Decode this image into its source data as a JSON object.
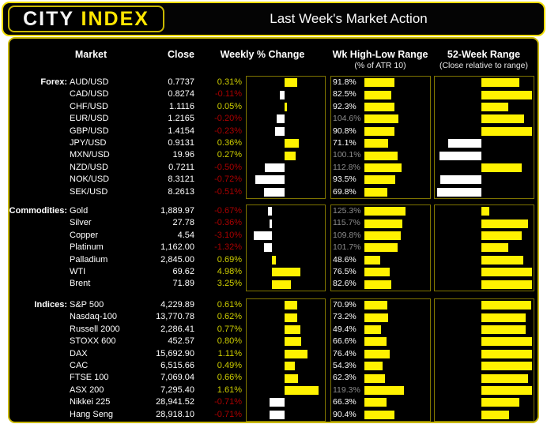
{
  "header": {
    "logo_city": "CITY ",
    "logo_index": "INDEX",
    "title": "Last Week's Market Action"
  },
  "columns": {
    "market": "Market",
    "close": "Close",
    "weekly": "Weekly % Change",
    "hl_range": "Wk High-Low Range",
    "hl_range_sub": "(% of ATR 10)",
    "range52": "52-Week Range",
    "range52_sub": "(Close relative to range)"
  },
  "colors": {
    "background": "#000000",
    "accent_yellow": "#ffe600",
    "bar_positive": "#fff200",
    "bar_negative": "#ffffff",
    "text_positive": "#cfcf00",
    "text_negative": "#ab0000",
    "text_normal": "#ffffff",
    "text_over100": "#8c8c8c",
    "frame_border": "#7f7500",
    "outer_border": "#c9b800"
  },
  "chart_data": {
    "type": "table",
    "title": "Last Week's Market Action",
    "legend_note": "Weekly % bars: yellow = up / white = down; Wk High-Low bars as % of ATR 10; 52-week bars show close relative to range midpoint (yellow right = upper half, white left = lower half)",
    "sections": [
      {
        "label": "Forex:",
        "rows": [
          {
            "market": "AUD/USD",
            "close": "0.7737",
            "weekly_pct": 0.31,
            "weekly_label": "0.31%",
            "atr_pct": 91.8,
            "atr_label": "91.8%",
            "range52": 0.73
          },
          {
            "market": "CAD/USD",
            "close": "0.8274",
            "weekly_pct": -0.11,
            "weekly_label": "-0.11%",
            "atr_pct": 82.5,
            "atr_label": "82.5%",
            "range52": 0.97
          },
          {
            "market": "CHF/USD",
            "close": "1.1116",
            "weekly_pct": 0.05,
            "weekly_label": "0.05%",
            "atr_pct": 92.3,
            "atr_label": "92.3%",
            "range52": 0.52
          },
          {
            "market": "EUR/USD",
            "close": "1.2165",
            "weekly_pct": -0.2,
            "weekly_label": "-0.20%",
            "atr_pct": 104.6,
            "atr_label": "104.6%",
            "range52": 0.82
          },
          {
            "market": "GBP/USD",
            "close": "1.4154",
            "weekly_pct": -0.23,
            "weekly_label": "-0.23%",
            "atr_pct": 90.8,
            "atr_label": "90.8%",
            "range52": 0.97
          },
          {
            "market": "JPY/USD",
            "close": "0.9131",
            "weekly_pct": 0.36,
            "weekly_label": "0.36%",
            "atr_pct": 71.1,
            "atr_label": "71.1%",
            "range52": -0.7
          },
          {
            "market": "MXN/USD",
            "close": "19.96",
            "weekly_pct": 0.27,
            "weekly_label": "0.27%",
            "atr_pct": 100.1,
            "atr_label": "100.1%",
            "range52": -0.88
          },
          {
            "market": "NZD/USD",
            "close": "0.7211",
            "weekly_pct": -0.5,
            "weekly_label": "-0.50%",
            "atr_pct": 112.8,
            "atr_label": "112.8%",
            "range52": 0.77
          },
          {
            "market": "NOK/USD",
            "close": "8.3121",
            "weekly_pct": -0.72,
            "weekly_label": "-0.72%",
            "atr_pct": 93.5,
            "atr_label": "93.5%",
            "range52": -0.87
          },
          {
            "market": "SEK/USD",
            "close": "8.2613",
            "weekly_pct": -0.51,
            "weekly_label": "-0.51%",
            "atr_pct": 69.8,
            "atr_label": "69.8%",
            "range52": -0.93
          }
        ]
      },
      {
        "label": "Commodities:",
        "rows": [
          {
            "market": "Gold",
            "close": "1,889.97",
            "weekly_pct": -0.67,
            "weekly_label": "-0.67%",
            "atr_pct": 125.3,
            "atr_label": "125.3%",
            "range52": 0.15
          },
          {
            "market": "Silver",
            "close": "27.78",
            "weekly_pct": -0.36,
            "weekly_label": "-0.36%",
            "atr_pct": 115.7,
            "atr_label": "115.7%",
            "range52": 0.89
          },
          {
            "market": "Copper",
            "close": "4.54",
            "weekly_pct": -3.1,
            "weekly_label": "-3.10%",
            "atr_pct": 109.8,
            "atr_label": "109.8%",
            "range52": 0.77
          },
          {
            "market": "Platinum",
            "close": "1,162.00",
            "weekly_pct": -1.32,
            "weekly_label": "-1.32%",
            "atr_pct": 101.7,
            "atr_label": "101.7%",
            "range52": 0.52
          },
          {
            "market": "Palladium",
            "close": "2,845.00",
            "weekly_pct": 0.69,
            "weekly_label": "0.69%",
            "atr_pct": 48.6,
            "atr_label": "48.6%",
            "range52": 0.81
          },
          {
            "market": "WTI",
            "close": "69.62",
            "weekly_pct": 4.98,
            "weekly_label": "4.98%",
            "atr_pct": 76.5,
            "atr_label": "76.5%",
            "range52": 0.97
          },
          {
            "market": "Brent",
            "close": "71.89",
            "weekly_pct": 3.25,
            "weekly_label": "3.25%",
            "atr_pct": 82.6,
            "atr_label": "82.6%",
            "range52": 0.97
          }
        ]
      },
      {
        "label": "Indices:",
        "rows": [
          {
            "market": "S&P 500",
            "close": "4,229.89",
            "weekly_pct": 0.61,
            "weekly_label": "0.61%",
            "atr_pct": 70.9,
            "atr_label": "70.9%",
            "range52": 0.95
          },
          {
            "market": "Nasdaq-100",
            "close": "13,770.78",
            "weekly_pct": 0.62,
            "weekly_label": "0.62%",
            "atr_pct": 73.2,
            "atr_label": "73.2%",
            "range52": 0.85
          },
          {
            "market": "Russell 2000",
            "close": "2,286.41",
            "weekly_pct": 0.77,
            "weekly_label": "0.77%",
            "atr_pct": 49.4,
            "atr_label": "49.4%",
            "range52": 0.85
          },
          {
            "market": "STOXX 600",
            "close": "452.57",
            "weekly_pct": 0.8,
            "weekly_label": "0.80%",
            "atr_pct": 66.6,
            "atr_label": "66.6%",
            "range52": 0.97
          },
          {
            "market": "DAX",
            "close": "15,692.90",
            "weekly_pct": 1.11,
            "weekly_label": "1.11%",
            "atr_pct": 76.4,
            "atr_label": "76.4%",
            "range52": 0.97
          },
          {
            "market": "CAC",
            "close": "6,515.66",
            "weekly_pct": 0.49,
            "weekly_label": "0.49%",
            "atr_pct": 54.3,
            "atr_label": "54.3%",
            "range52": 0.97
          },
          {
            "market": "FTSE 100",
            "close": "7,069.04",
            "weekly_pct": 0.66,
            "weekly_label": "0.66%",
            "atr_pct": 62.3,
            "atr_label": "62.3%",
            "range52": 0.89
          },
          {
            "market": "ASX 200",
            "close": "7,295.40",
            "weekly_pct": 1.61,
            "weekly_label": "1.61%",
            "atr_pct": 119.3,
            "atr_label": "119.3%",
            "range52": 0.97
          },
          {
            "market": "Nikkei 225",
            "close": "28,941.52",
            "weekly_pct": -0.71,
            "weekly_label": "-0.71%",
            "atr_pct": 66.3,
            "atr_label": "66.3%",
            "range52": 0.72
          },
          {
            "market": "Hang Seng",
            "close": "28,918.10",
            "weekly_pct": -0.71,
            "weekly_label": "-0.71%",
            "atr_pct": 90.4,
            "atr_label": "90.4%",
            "range52": 0.53
          }
        ]
      }
    ]
  }
}
